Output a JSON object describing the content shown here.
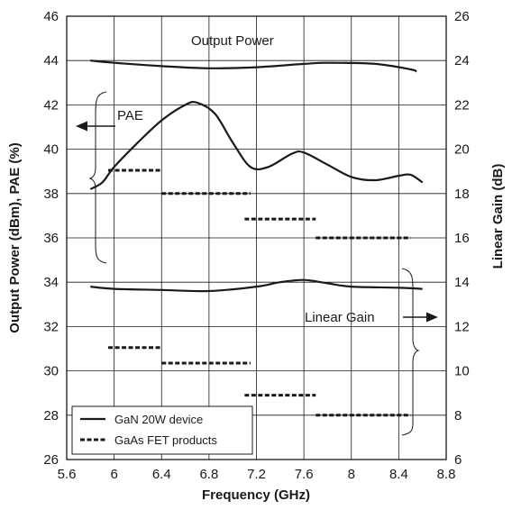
{
  "chart_data": {
    "type": "line",
    "xlabel": "Frequency (GHz)",
    "ylabel_left": "Output Power (dBm), PAE (%)",
    "ylabel_right": "Linear Gain (dB)",
    "xlim": [
      5.6,
      8.8
    ],
    "ylim_left": [
      26,
      46
    ],
    "ylim_right": [
      6,
      26
    ],
    "x_ticks": [
      "5.6",
      "6",
      "6.4",
      "6.8",
      "7.2",
      "7.6",
      "8",
      "8.4",
      "8.8"
    ],
    "y_ticks_left": [
      "26",
      "28",
      "30",
      "32",
      "34",
      "36",
      "38",
      "40",
      "42",
      "44",
      "46"
    ],
    "y_ticks_right": [
      "6",
      "8",
      "10",
      "12",
      "14",
      "16",
      "18",
      "20",
      "22",
      "24",
      "26"
    ],
    "grid": true,
    "legend_position": "bottom-left",
    "legend": [
      {
        "label": "GaN 20W device",
        "style": "solid"
      },
      {
        "label": "GaAs FET products",
        "style": "dashed"
      }
    ],
    "annotations": {
      "output_power": "Output Power",
      "pae": "PAE",
      "linear_gain": "Linear Gain"
    },
    "series": [
      {
        "group": "GaN 20W device",
        "axis": "left",
        "style": "solid",
        "points": [
          [
            5.8,
            44.0
          ],
          [
            6.0,
            43.9
          ],
          [
            6.4,
            43.75
          ],
          [
            6.8,
            43.65
          ],
          [
            7.2,
            43.7
          ],
          [
            7.6,
            43.85
          ],
          [
            7.8,
            43.9
          ],
          [
            8.2,
            43.85
          ],
          [
            8.5,
            43.6
          ],
          [
            8.55,
            43.5
          ]
        ]
      },
      {
        "group": "GaN 20W device",
        "axis": "left",
        "style": "solid",
        "points": [
          [
            5.8,
            38.2
          ],
          [
            5.9,
            38.5
          ],
          [
            6.0,
            39.2
          ],
          [
            6.2,
            40.3
          ],
          [
            6.4,
            41.3
          ],
          [
            6.6,
            42.0
          ],
          [
            6.7,
            42.1
          ],
          [
            6.85,
            41.6
          ],
          [
            7.0,
            40.3
          ],
          [
            7.15,
            39.2
          ],
          [
            7.3,
            39.2
          ],
          [
            7.5,
            39.8
          ],
          [
            7.6,
            39.85
          ],
          [
            7.8,
            39.3
          ],
          [
            8.0,
            38.75
          ],
          [
            8.2,
            38.6
          ],
          [
            8.4,
            38.8
          ],
          [
            8.5,
            38.85
          ],
          [
            8.6,
            38.5
          ]
        ]
      },
      {
        "group": "GaN 20W device",
        "axis": "right",
        "style": "solid",
        "points": [
          [
            5.8,
            13.8
          ],
          [
            6.0,
            13.7
          ],
          [
            6.4,
            13.65
          ],
          [
            6.8,
            13.6
          ],
          [
            7.2,
            13.8
          ],
          [
            7.4,
            14.0
          ],
          [
            7.6,
            14.1
          ],
          [
            7.8,
            13.95
          ],
          [
            8.0,
            13.8
          ],
          [
            8.4,
            13.75
          ],
          [
            8.6,
            13.7
          ]
        ]
      },
      {
        "group": "GaAs FET products",
        "axis": "left",
        "style": "dashed",
        "segments": [
          {
            "x": [
              5.95,
              6.4
            ],
            "y": 39.05
          },
          {
            "x": [
              6.4,
              7.15
            ],
            "y": 38.0
          },
          {
            "x": [
              7.1,
              7.7
            ],
            "y": 36.85
          },
          {
            "x": [
              7.7,
              8.5
            ],
            "y": 36.0
          }
        ]
      },
      {
        "group": "GaAs FET products",
        "axis": "left",
        "style": "dashed",
        "segments": [
          {
            "x": [
              5.95,
              6.4
            ],
            "y": 31.05
          },
          {
            "x": [
              6.4,
              7.15
            ],
            "y": 30.35
          },
          {
            "x": [
              7.1,
              7.7
            ],
            "y": 28.9
          },
          {
            "x": [
              7.7,
              8.5
            ],
            "y": 28.0
          }
        ]
      }
    ]
  }
}
